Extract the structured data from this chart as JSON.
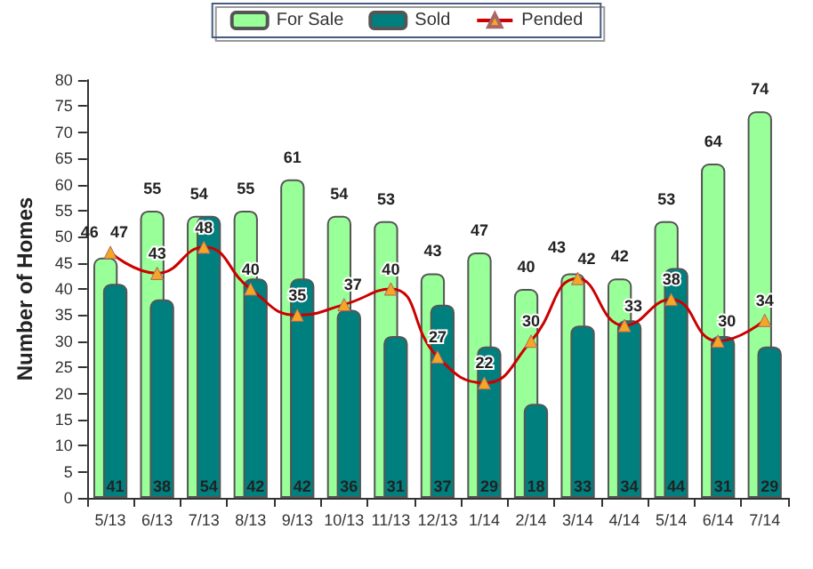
{
  "chart_data": {
    "type": "bar",
    "ylabel": "Number of Homes",
    "categories": [
      "5/13",
      "6/13",
      "7/13",
      "8/13",
      "9/13",
      "10/13",
      "11/13",
      "12/13",
      "1/14",
      "2/14",
      "3/14",
      "4/14",
      "5/14",
      "6/14",
      "7/14"
    ],
    "series": [
      {
        "name": "For Sale",
        "color": "#99ff99",
        "values": [
          46,
          55,
          54,
          55,
          61,
          54,
          53,
          43,
          47,
          40,
          43,
          42,
          53,
          64,
          74
        ]
      },
      {
        "name": "Sold",
        "color": "#007f7f",
        "values": [
          41,
          38,
          54,
          42,
          42,
          36,
          31,
          37,
          29,
          18,
          33,
          34,
          44,
          31,
          29
        ]
      },
      {
        "name": "Pended",
        "type": "line",
        "color": "#cc0000",
        "marker": "triangle",
        "values": [
          47,
          43,
          48,
          40,
          35,
          37,
          40,
          27,
          22,
          30,
          42,
          33,
          38,
          30,
          34
        ]
      }
    ],
    "ylim": [
      0,
      80
    ],
    "yticks": [
      0,
      5,
      10,
      15,
      20,
      25,
      30,
      35,
      40,
      45,
      50,
      55,
      60,
      65,
      70,
      75,
      80
    ],
    "grid": false,
    "legend": "top",
    "data_labels": true
  }
}
